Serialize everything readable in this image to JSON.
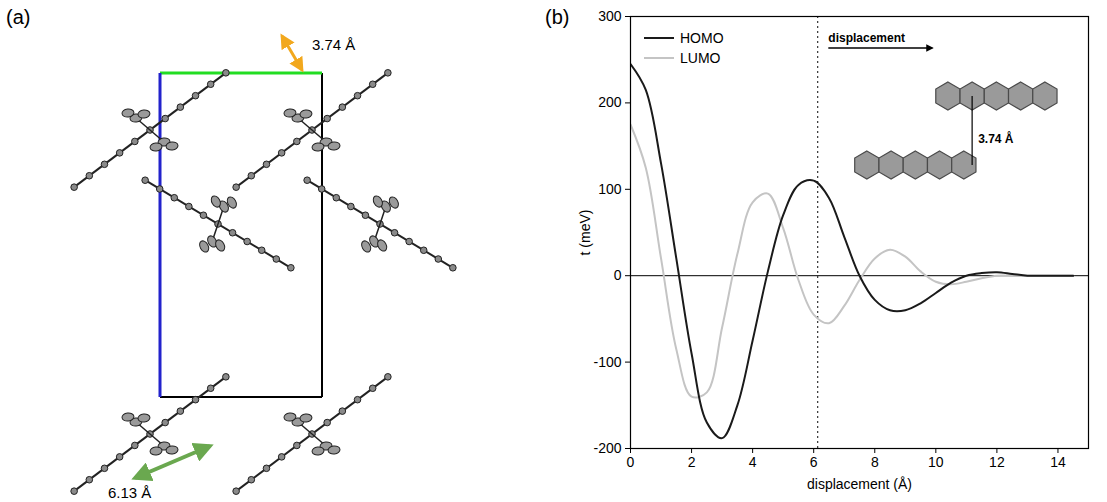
{
  "diagram": {
    "label": "(a)",
    "annotations": [
      "3.74 Å",
      "6.13 Å"
    ]
  },
  "chart_data": {
    "type": "line",
    "panel_label": "(b)",
    "x_label": "displacement (Å)",
    "y_label": "t (meV)",
    "x": [
      0,
      0.5,
      1,
      1.5,
      2,
      2.5,
      3,
      3.5,
      4,
      4.5,
      5,
      5.5,
      6,
      6.5,
      7,
      7.5,
      8,
      8.5,
      9,
      9.5,
      10,
      10.5,
      11,
      11.5,
      12,
      12.5,
      13,
      13.5,
      14,
      14.5
    ],
    "series": [
      {
        "name": "HOMO",
        "color": "#1a1a1a",
        "values": [
          245,
          215,
          130,
          20,
          -90,
          -170,
          -188,
          -150,
          -75,
          5,
          70,
          105,
          110,
          90,
          45,
          0,
          -28,
          -40,
          -40,
          -32,
          -20,
          -8,
          0,
          3,
          4,
          2,
          0,
          0,
          0,
          0
        ]
      },
      {
        "name": "LUMO",
        "color": "#c4c4c4",
        "values": [
          175,
          125,
          20,
          -85,
          -140,
          -135,
          -60,
          25,
          85,
          95,
          55,
          -5,
          -45,
          -55,
          -35,
          -5,
          20,
          30,
          22,
          5,
          -7,
          -10,
          -7,
          -3,
          0,
          0,
          0,
          0,
          0,
          0
        ]
      }
    ],
    "xlim": [
      0,
      15
    ],
    "xticks": [
      0,
      2,
      4,
      6,
      8,
      10,
      12,
      14
    ],
    "ylim": [
      -200,
      300
    ],
    "yticks": [
      -200,
      -100,
      0,
      100,
      200,
      300
    ],
    "legend": "upper left",
    "vline": {
      "x": 6.13,
      "line_style": "dotted"
    },
    "inset": {
      "arrow_label": "displacement",
      "spacing_label": "3.74 Å"
    }
  }
}
